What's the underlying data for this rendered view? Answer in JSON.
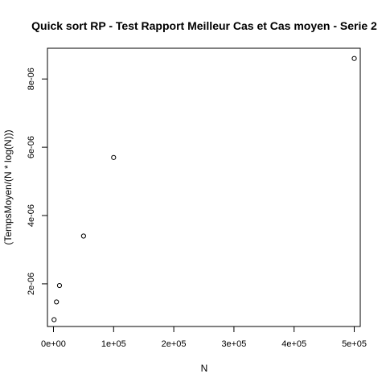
{
  "chart_data": {
    "type": "scatter",
    "title": "Quick sort RP - Test Rapport Meilleur Cas et Cas moyen - Serie 2",
    "xlabel": "N",
    "ylabel": "(TempsMoyen/(N * log(N)))",
    "xlim": [
      -10000,
      510000
    ],
    "ylim": [
      7.5e-07,
      8.9e-06
    ],
    "x_ticks": [
      0,
      100000,
      200000,
      300000,
      400000,
      500000
    ],
    "x_tick_labels": [
      "0e+00",
      "1e+05",
      "2e+05",
      "3e+05",
      "4e+05",
      "5e+05"
    ],
    "y_ticks": [
      2e-06,
      4e-06,
      6e-06,
      8e-06
    ],
    "y_tick_labels": [
      "2e-06",
      "4e-06",
      "6e-06",
      "8e-06"
    ],
    "grid": false,
    "legend": "none",
    "marker": "open-circle",
    "points": [
      {
        "x": 1000,
        "y": 9.5e-07
      },
      {
        "x": 5000,
        "y": 1.47e-06
      },
      {
        "x": 10000,
        "y": 1.95e-06
      },
      {
        "x": 50000,
        "y": 3.4e-06
      },
      {
        "x": 100000,
        "y": 5.7e-06
      },
      {
        "x": 500000,
        "y": 8.6e-06
      }
    ]
  }
}
